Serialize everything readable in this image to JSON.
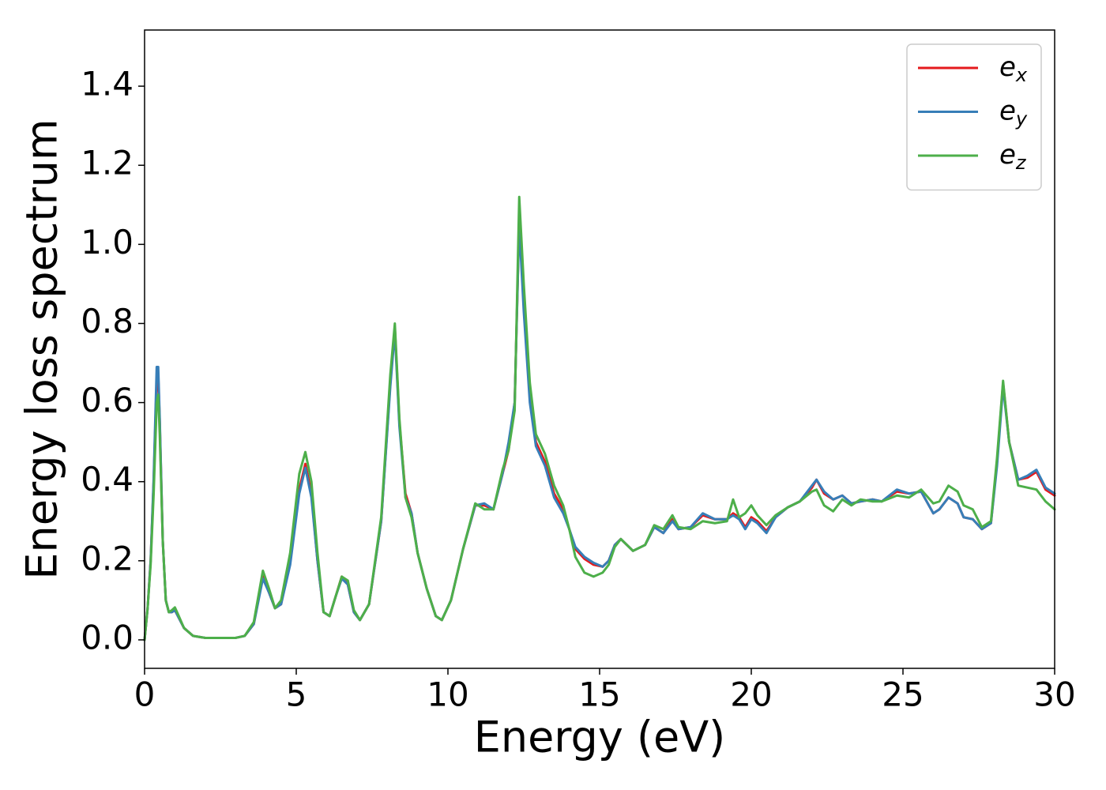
{
  "chart_data": {
    "type": "line",
    "x_label": "Energy (eV)",
    "y_label": "Energy loss spectrum",
    "xlim": [
      0,
      30
    ],
    "ylim": [
      -0.072,
      1.542
    ],
    "xticks": [
      0,
      5,
      10,
      15,
      20,
      25,
      30
    ],
    "yticks": [
      {
        "value": 0,
        "label": "0.0"
      },
      0.2,
      0.4,
      0.6,
      0.8,
      {
        "value": 1,
        "label": "1.0"
      },
      1.2,
      1.4
    ],
    "grid": false,
    "legend": "upper right",
    "x": [
      0,
      0.1,
      0.2,
      0.3,
      0.4,
      0.45,
      0.5,
      0.6,
      0.7,
      0.8,
      0.9,
      1.0,
      1.1,
      1.3,
      1.6,
      2,
      3,
      3.3,
      3.6,
      3.9,
      4.1,
      4.3,
      4.5,
      4.8,
      5.1,
      5.3,
      5.5,
      5.7,
      5.9,
      6.1,
      6.3,
      6.5,
      6.7,
      6.9,
      7.1,
      7.4,
      7.8,
      8.1,
      8.25,
      8.4,
      8.6,
      8.8,
      9.0,
      9.3,
      9.6,
      9.8,
      10.1,
      10.5,
      10.9,
      11.2,
      11.5,
      11.8,
      12.0,
      12.2,
      12.35,
      12.5,
      12.7,
      12.9,
      13.2,
      13.5,
      13.8,
      14.0,
      14.2,
      14.5,
      14.8,
      15.1,
      15.3,
      15.5,
      15.7,
      15.9,
      16.1,
      16.5,
      16.8,
      17.1,
      17.4,
      17.6,
      18,
      18.4,
      18.8,
      19.2,
      19.4,
      19.6,
      19.8,
      20,
      20.2,
      20.5,
      20.8,
      21.2,
      21.6,
      22,
      22.15,
      22.4,
      22.7,
      23,
      23.3,
      23.6,
      24,
      24.3,
      24.8,
      25.2,
      25.6,
      26,
      26.2,
      26.5,
      26.8,
      27,
      27.3,
      27.6,
      27.9,
      28.1,
      28.3,
      28.5,
      28.8,
      29.1,
      29.4,
      29.7,
      30
    ],
    "series": [
      {
        "name": "ex",
        "color": "#e41a1c",
        "values": [
          0,
          0.08,
          0.2,
          0.4,
          0.66,
          0.67,
          0.55,
          0.25,
          0.1,
          0.07,
          0.07,
          0.075,
          0.06,
          0.03,
          0.01,
          0.005,
          0.005,
          0.01,
          0.04,
          0.16,
          0.12,
          0.08,
          0.09,
          0.2,
          0.38,
          0.445,
          0.37,
          0.2,
          0.07,
          0.06,
          0.11,
          0.16,
          0.14,
          0.07,
          0.05,
          0.09,
          0.3,
          0.65,
          0.79,
          0.55,
          0.37,
          0.32,
          0.22,
          0.13,
          0.06,
          0.05,
          0.1,
          0.23,
          0.34,
          0.34,
          0.33,
          0.42,
          0.48,
          0.6,
          1.06,
          0.85,
          0.62,
          0.5,
          0.45,
          0.37,
          0.33,
          0.28,
          0.23,
          0.205,
          0.19,
          0.185,
          0.2,
          0.24,
          0.255,
          0.24,
          0.225,
          0.24,
          0.285,
          0.27,
          0.305,
          0.28,
          0.285,
          0.315,
          0.305,
          0.305,
          0.32,
          0.31,
          0.285,
          0.31,
          0.3,
          0.275,
          0.31,
          0.335,
          0.35,
          0.385,
          0.405,
          0.37,
          0.355,
          0.365,
          0.345,
          0.35,
          0.355,
          0.35,
          0.375,
          0.37,
          0.375,
          0.32,
          0.33,
          0.36,
          0.345,
          0.31,
          0.305,
          0.28,
          0.295,
          0.45,
          0.65,
          0.5,
          0.405,
          0.41,
          0.425,
          0.38,
          0.365
        ]
      },
      {
        "name": "ey",
        "color": "#377eb8",
        "values": [
          0,
          0.08,
          0.2,
          0.41,
          0.69,
          0.69,
          0.56,
          0.25,
          0.1,
          0.07,
          0.07,
          0.075,
          0.06,
          0.03,
          0.01,
          0.005,
          0.005,
          0.01,
          0.04,
          0.155,
          0.12,
          0.08,
          0.09,
          0.19,
          0.37,
          0.435,
          0.36,
          0.2,
          0.07,
          0.06,
          0.11,
          0.155,
          0.14,
          0.07,
          0.05,
          0.09,
          0.3,
          0.64,
          0.78,
          0.54,
          0.36,
          0.32,
          0.22,
          0.13,
          0.06,
          0.05,
          0.1,
          0.23,
          0.34,
          0.345,
          0.33,
          0.42,
          0.5,
          0.6,
          1.05,
          0.83,
          0.6,
          0.49,
          0.44,
          0.36,
          0.32,
          0.28,
          0.235,
          0.21,
          0.195,
          0.185,
          0.2,
          0.24,
          0.255,
          0.24,
          0.225,
          0.24,
          0.285,
          0.27,
          0.3,
          0.28,
          0.285,
          0.32,
          0.305,
          0.305,
          0.315,
          0.305,
          0.28,
          0.305,
          0.295,
          0.27,
          0.31,
          0.335,
          0.35,
          0.39,
          0.405,
          0.375,
          0.355,
          0.365,
          0.345,
          0.35,
          0.355,
          0.35,
          0.38,
          0.37,
          0.375,
          0.32,
          0.33,
          0.36,
          0.345,
          0.31,
          0.305,
          0.28,
          0.295,
          0.44,
          0.64,
          0.5,
          0.405,
          0.415,
          0.43,
          0.385,
          0.37
        ]
      },
      {
        "name": "ez",
        "color": "#4daf4a",
        "values": [
          0,
          0.08,
          0.19,
          0.37,
          0.6,
          0.62,
          0.52,
          0.25,
          0.1,
          0.07,
          0.075,
          0.082,
          0.065,
          0.03,
          0.01,
          0.005,
          0.005,
          0.01,
          0.045,
          0.175,
          0.13,
          0.08,
          0.1,
          0.22,
          0.42,
          0.475,
          0.4,
          0.22,
          0.07,
          0.06,
          0.11,
          0.16,
          0.15,
          0.075,
          0.05,
          0.09,
          0.31,
          0.67,
          0.8,
          0.56,
          0.36,
          0.31,
          0.22,
          0.13,
          0.06,
          0.05,
          0.1,
          0.23,
          0.345,
          0.33,
          0.33,
          0.43,
          0.48,
          0.58,
          1.12,
          0.9,
          0.65,
          0.52,
          0.47,
          0.39,
          0.34,
          0.28,
          0.21,
          0.17,
          0.16,
          0.17,
          0.19,
          0.235,
          0.255,
          0.24,
          0.225,
          0.24,
          0.29,
          0.28,
          0.315,
          0.285,
          0.28,
          0.3,
          0.295,
          0.3,
          0.355,
          0.31,
          0.32,
          0.34,
          0.315,
          0.29,
          0.315,
          0.335,
          0.35,
          0.375,
          0.38,
          0.34,
          0.325,
          0.355,
          0.34,
          0.355,
          0.35,
          0.35,
          0.365,
          0.36,
          0.38,
          0.345,
          0.35,
          0.39,
          0.375,
          0.34,
          0.33,
          0.285,
          0.3,
          0.46,
          0.655,
          0.5,
          0.39,
          0.385,
          0.38,
          0.35,
          0.33
        ]
      }
    ]
  }
}
